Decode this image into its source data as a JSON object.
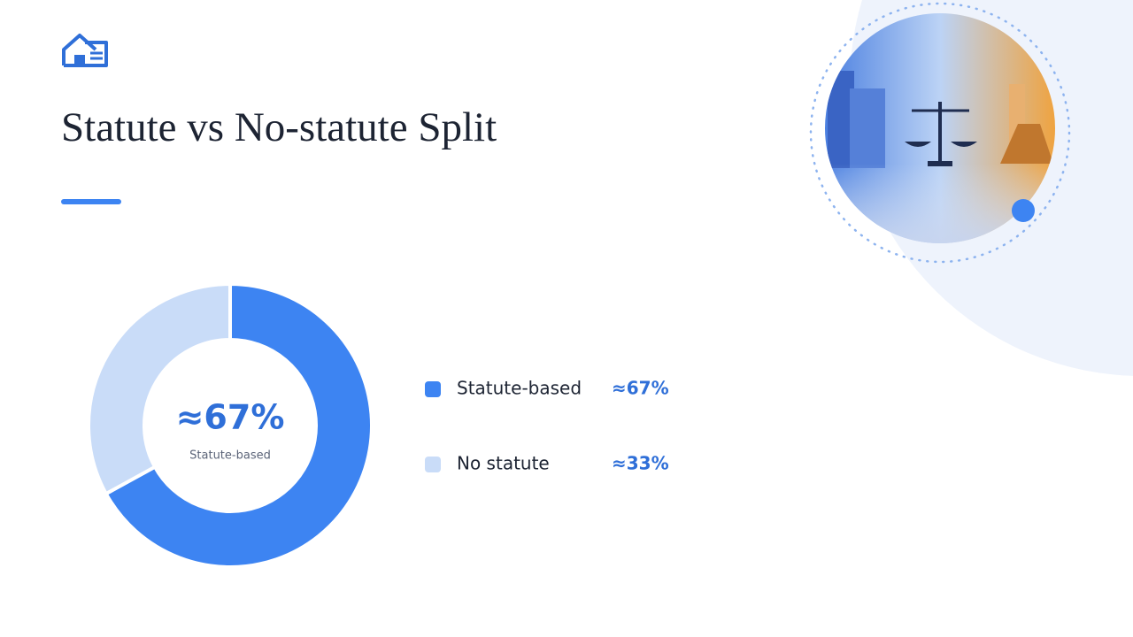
{
  "chart_data": {
    "type": "donut",
    "title": "Statute vs No-statute Split",
    "categories": [
      "Statute-based",
      "No statute"
    ],
    "values": [
      67,
      33
    ],
    "value_labels": [
      "≈67%",
      "≈33%"
    ],
    "colors": [
      "#3d84f2",
      "#c9dcf8"
    ]
  }
}
